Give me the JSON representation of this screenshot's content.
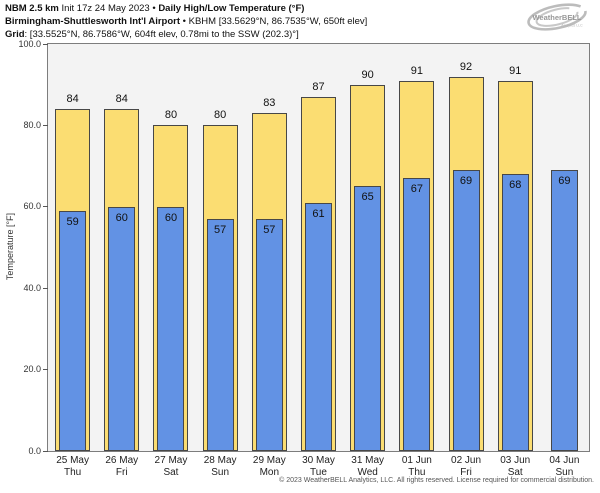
{
  "header": {
    "line1": {
      "model": "NBM 2.5 km",
      "init": " Init 17z 24 May 2023 • ",
      "product": "Daily High/Low Temperature (°F)"
    },
    "line2": {
      "station": "Birmingham-Shuttlesworth Int'l Airport",
      "details": " • KBHM [33.5629°N, 86.7535°W, 650ft elev]"
    },
    "line3": {
      "label": "Grid",
      "details": ": [33.5525°N, 86.7586°W, 604ft elev, 0.78mi to the SSW (202.3)°]"
    }
  },
  "logo": {
    "brand": "WeatherBELL",
    "sub": "Analytics LLC"
  },
  "footer": {
    "copyright": "© 2023 WeatherBELL Analytics, LLC. All rights reserved. License required for commercial distribution."
  },
  "chart_data": {
    "type": "bar",
    "title": "NBM 2.5 km Daily High/Low Temperature (°F) — Birmingham-Shuttlesworth Int'l Airport (KBHM)",
    "xlabel": "",
    "ylabel": "Temperature [°F]",
    "ylim": [
      0,
      100
    ],
    "yticks": [
      "0.0",
      "20.0",
      "40.0",
      "60.0",
      "80.0",
      "100.0"
    ],
    "grid": false,
    "legend": null,
    "categories": [
      "25 May",
      "26 May",
      "27 May",
      "28 May",
      "29 May",
      "30 May",
      "31 May",
      "01 Jun",
      "02 Jun",
      "03 Jun",
      "04 Jun"
    ],
    "weekdays": [
      "Thu",
      "Fri",
      "Sat",
      "Sun",
      "Mon",
      "Tue",
      "Wed",
      "Thu",
      "Fri",
      "Sat",
      "Sun"
    ],
    "series": [
      {
        "name": "Daily High",
        "color": "#fbdd72",
        "values": [
          84,
          84,
          80,
          80,
          83,
          87,
          90,
          91,
          92,
          91,
          null
        ]
      },
      {
        "name": "Daily Low",
        "color": "#6292e4",
        "values": [
          59,
          60,
          60,
          57,
          57,
          61,
          65,
          67,
          69,
          68,
          69
        ]
      }
    ]
  }
}
